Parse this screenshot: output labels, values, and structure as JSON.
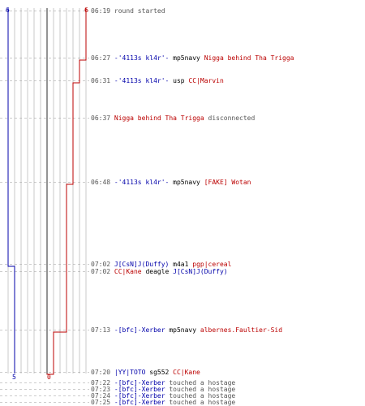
{
  "colors": {
    "blue_team": "#0000aa",
    "red_team": "#bb0000",
    "grid": "#c8c8c8",
    "center": "#666666",
    "dash": "#999999"
  },
  "scores": {
    "blue_top": "6",
    "red_top": "6",
    "blue_bottom": "5",
    "red_bottom": "0"
  },
  "timeline": {
    "blue_alive": [
      6,
      6,
      6,
      6,
      6,
      1,
      1,
      1,
      1
    ],
    "red_alive": [
      6,
      5,
      4,
      4,
      3,
      3,
      3,
      2,
      0
    ]
  },
  "events": [
    {
      "time": "06:19",
      "parts": [
        {
          "t": "round started",
          "c": "sys"
        }
      ]
    },
    {
      "time": "06:27",
      "parts": [
        {
          "t": "-'4113s kl4r'-",
          "c": "blue"
        },
        {
          "t": " mp5navy ",
          "c": "blk"
        },
        {
          "t": "Nigga behind Tha Trigga",
          "c": "red"
        }
      ]
    },
    {
      "time": "06:31",
      "parts": [
        {
          "t": "-'4113s kl4r'-",
          "c": "blue"
        },
        {
          "t": " usp ",
          "c": "blk"
        },
        {
          "t": "CC|Marvin",
          "c": "red"
        }
      ]
    },
    {
      "time": "06:37",
      "parts": [
        {
          "t": "Nigga behind Tha Trigga",
          "c": "red"
        },
        {
          "t": " disconnected",
          "c": "sys"
        }
      ]
    },
    {
      "time": "06:48",
      "parts": [
        {
          "t": "-'4113s kl4r'-",
          "c": "blue"
        },
        {
          "t": " mp5navy ",
          "c": "blk"
        },
        {
          "t": "[FAKE] Wotan",
          "c": "red"
        }
      ]
    },
    {
      "time": "07:02",
      "parts": [
        {
          "t": "J[CsN]J(Duffy)",
          "c": "blue"
        },
        {
          "t": " m4a1 ",
          "c": "blk"
        },
        {
          "t": "pgp|cereal",
          "c": "red"
        }
      ]
    },
    {
      "time": "07:02",
      "parts": [
        {
          "t": "CC|Kane",
          "c": "red"
        },
        {
          "t": " deagle ",
          "c": "blk"
        },
        {
          "t": "J[CsN]J(Duffy)",
          "c": "blue"
        }
      ]
    },
    {
      "time": "07:13",
      "parts": [
        {
          "t": "-[bfc]-Xerber",
          "c": "blue"
        },
        {
          "t": " mp5navy ",
          "c": "blk"
        },
        {
          "t": "albernes.Faultier-Sid",
          "c": "red"
        }
      ]
    },
    {
      "time": "07:20",
      "parts": [
        {
          "t": "|YY|TOTO",
          "c": "blue"
        },
        {
          "t": " sg552 ",
          "c": "blk"
        },
        {
          "t": "CC|Kane",
          "c": "red"
        }
      ]
    },
    {
      "time": "07:22",
      "parts": [
        {
          "t": "-[bfc]-Xerber",
          "c": "blue"
        },
        {
          "t": " touched a hostage",
          "c": "sys"
        }
      ]
    },
    {
      "time": "07:23",
      "parts": [
        {
          "t": "-[bfc]-Xerber",
          "c": "blue"
        },
        {
          "t": " touched a hostage",
          "c": "sys"
        }
      ]
    },
    {
      "time": "07:24",
      "parts": [
        {
          "t": "-[bfc]-Xerber",
          "c": "blue"
        },
        {
          "t": " touched a hostage",
          "c": "sys"
        }
      ]
    },
    {
      "time": "07:25",
      "parts": [
        {
          "t": "-[bfc]-Xerber",
          "c": "blue"
        },
        {
          "t": " touched a hostage",
          "c": "sys"
        }
      ]
    }
  ]
}
